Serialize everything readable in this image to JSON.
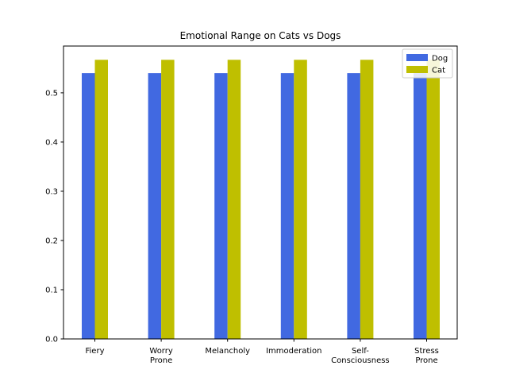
{
  "chart_data": {
    "type": "bar",
    "title": "Emotional Range on Cats vs Dogs",
    "xlabel": "",
    "ylabel": "",
    "categories": [
      [
        "Fiery"
      ],
      [
        "Worry",
        "Prone"
      ],
      [
        "Melancholy"
      ],
      [
        "Immoderation"
      ],
      [
        "Self-",
        "Consciousness"
      ],
      [
        "Stress",
        "Prone"
      ]
    ],
    "series": [
      {
        "name": "Dog",
        "color": "#4169e1",
        "values": [
          0.54,
          0.54,
          0.54,
          0.54,
          0.54,
          0.54
        ]
      },
      {
        "name": "Cat",
        "color": "#bfbf00",
        "values": [
          0.567,
          0.567,
          0.567,
          0.567,
          0.567,
          0.567
        ]
      }
    ],
    "ylim": [
      0,
      0.595
    ],
    "yticks": [
      "0.0",
      "0.1",
      "0.2",
      "0.3",
      "0.4",
      "0.5"
    ],
    "grid": false,
    "legend_position": "top-right"
  }
}
